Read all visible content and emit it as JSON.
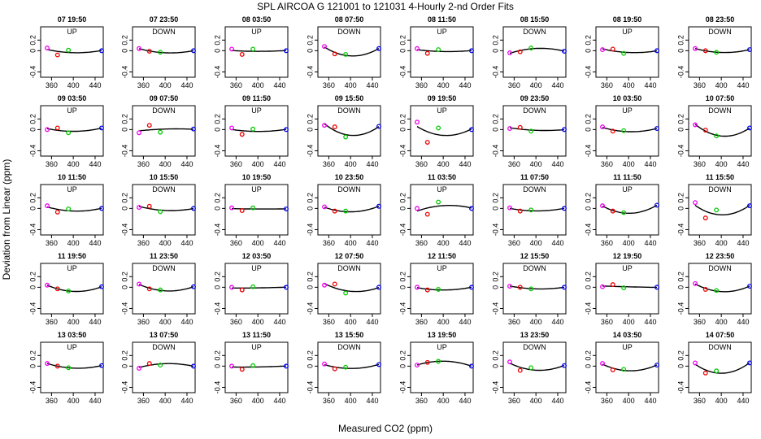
{
  "figure": {
    "title": "SPL   AIRCOA G   121001 to 121031   4-Hourly 2-nd Order Fits",
    "xlabel": "Measured CO2 (ppm)",
    "ylabel": "Deviation from Linear (ppm)"
  },
  "chart_data": {
    "type": "scatter",
    "layout": "5 rows x 8 columns small multiples",
    "xlim": [
      340,
      455
    ],
    "ylim": [
      -0.5,
      0.45
    ],
    "x_ticks": [
      360,
      400,
      440
    ],
    "y_ticks": [
      -0.4,
      0,
      0.2
    ],
    "y_tick_labels": [
      "-0.4",
      "0",
      "0.2"
    ],
    "standards_x": [
      352,
      371,
      391,
      452
    ],
    "point_colors": [
      "#ee00ee",
      "#ee0000",
      "#00cc00",
      "#0000ee"
    ],
    "curve_color": "#000000",
    "panels": [
      {
        "title": "07 19:50",
        "dir": "UP",
        "pts": [
          0.05,
          -0.08,
          0.01,
          0.0
        ]
      },
      {
        "title": "07 23:50",
        "dir": "DOWN",
        "pts": [
          0.04,
          -0.01,
          -0.03,
          0.0
        ]
      },
      {
        "title": "08 03:50",
        "dir": "UP",
        "pts": [
          0.03,
          -0.07,
          0.03,
          0.0
        ]
      },
      {
        "title": "08 07:50",
        "dir": "DOWN",
        "pts": [
          0.08,
          -0.06,
          -0.07,
          0.04
        ]
      },
      {
        "title": "08 11:50",
        "dir": "UP",
        "pts": [
          0.04,
          -0.05,
          0.02,
          0.0
        ]
      },
      {
        "title": "08 15:50",
        "dir": "DOWN",
        "pts": [
          -0.04,
          -0.02,
          0.05,
          -0.01
        ]
      },
      {
        "title": "08 19:50",
        "dir": "UP",
        "pts": [
          0.02,
          0.03,
          -0.05,
          0.0
        ]
      },
      {
        "title": "08 23:50",
        "dir": "DOWN",
        "pts": [
          0.04,
          0.0,
          -0.03,
          0.02
        ]
      },
      {
        "title": "09 03:50",
        "dir": "UP",
        "pts": [
          0.0,
          0.03,
          -0.06,
          0.03
        ]
      },
      {
        "title": "09 07:50",
        "dir": "DOWN",
        "pts": [
          -0.06,
          0.08,
          -0.05,
          0.01
        ]
      },
      {
        "title": "09 11:50",
        "dir": "UP",
        "pts": [
          0.03,
          -0.09,
          0.01,
          0.0
        ]
      },
      {
        "title": "09 15:50",
        "dir": "DOWN",
        "pts": [
          0.08,
          0.05,
          -0.14,
          0.06
        ]
      },
      {
        "title": "09 19:50",
        "dir": "UP",
        "pts": [
          0.14,
          -0.24,
          0.03,
          0.0
        ]
      },
      {
        "title": "09 23:50",
        "dir": "DOWN",
        "pts": [
          0.02,
          0.04,
          -0.03,
          0.0
        ]
      },
      {
        "title": "10 03:50",
        "dir": "UP",
        "pts": [
          0.05,
          -0.03,
          -0.02,
          0.02
        ]
      },
      {
        "title": "10 07:50",
        "dir": "DOWN",
        "pts": [
          0.09,
          -0.01,
          -0.12,
          0.03
        ]
      },
      {
        "title": "10 11:50",
        "dir": "UP",
        "pts": [
          0.05,
          -0.07,
          -0.01,
          0.0
        ]
      },
      {
        "title": "10 15:50",
        "dir": "DOWN",
        "pts": [
          0.02,
          0.04,
          -0.06,
          0.0
        ]
      },
      {
        "title": "10 19:50",
        "dir": "UP",
        "pts": [
          0.01,
          -0.04,
          0.01,
          -0.01
        ]
      },
      {
        "title": "10 23:50",
        "dir": "DOWN",
        "pts": [
          0.03,
          -0.05,
          -0.05,
          0.04
        ]
      },
      {
        "title": "11 03:50",
        "dir": "UP",
        "pts": [
          0.0,
          -0.11,
          0.12,
          0.0
        ]
      },
      {
        "title": "11 07:50",
        "dir": "DOWN",
        "pts": [
          0.01,
          -0.05,
          -0.03,
          0.0
        ]
      },
      {
        "title": "11 11:50",
        "dir": "UP",
        "pts": [
          0.05,
          -0.05,
          -0.08,
          0.06
        ]
      },
      {
        "title": "11 15:50",
        "dir": "DOWN",
        "pts": [
          0.11,
          -0.18,
          -0.03,
          0.05
        ]
      },
      {
        "title": "11 19:50",
        "dir": "UP",
        "pts": [
          0.04,
          -0.03,
          -0.07,
          0.01
        ]
      },
      {
        "title": "11 23:50",
        "dir": "DOWN",
        "pts": [
          0.06,
          -0.03,
          -0.05,
          0.01
        ]
      },
      {
        "title": "12 03:50",
        "dir": "UP",
        "pts": [
          0.0,
          -0.05,
          0.01,
          0.0
        ]
      },
      {
        "title": "12 07:50",
        "dir": "DOWN",
        "pts": [
          0.04,
          0.06,
          -0.11,
          0.0
        ]
      },
      {
        "title": "12 11:50",
        "dir": "UP",
        "pts": [
          0.0,
          -0.05,
          -0.04,
          0.0
        ]
      },
      {
        "title": "12 15:50",
        "dir": "DOWN",
        "pts": [
          0.02,
          0.0,
          -0.03,
          0.0
        ]
      },
      {
        "title": "12 19:50",
        "dir": "UP",
        "pts": [
          0.01,
          0.05,
          -0.01,
          0.0
        ]
      },
      {
        "title": "12 23:50",
        "dir": "DOWN",
        "pts": [
          0.07,
          -0.04,
          -0.06,
          0.02
        ]
      },
      {
        "title": "13 03:50",
        "dir": "UP",
        "pts": [
          0.05,
          0.0,
          -0.03,
          0.01
        ]
      },
      {
        "title": "13 07:50",
        "dir": "DOWN",
        "pts": [
          -0.04,
          0.05,
          0.02,
          0.0
        ]
      },
      {
        "title": "13 11:50",
        "dir": "UP",
        "pts": [
          0.0,
          -0.06,
          0.01,
          0.0
        ]
      },
      {
        "title": "13 15:50",
        "dir": "DOWN",
        "pts": [
          0.04,
          -0.05,
          -0.02,
          0.03
        ]
      },
      {
        "title": "13 19:50",
        "dir": "UP",
        "pts": [
          0.02,
          0.07,
          0.09,
          0.0
        ]
      },
      {
        "title": "13 23:50",
        "dir": "DOWN",
        "pts": [
          0.08,
          -0.08,
          -0.03,
          0.01
        ]
      },
      {
        "title": "14 03:50",
        "dir": "UP",
        "pts": [
          0.05,
          -0.07,
          -0.06,
          0.02
        ]
      },
      {
        "title": "14 07:50",
        "dir": "DOWN",
        "pts": [
          0.06,
          -0.13,
          -0.09,
          0.06
        ]
      }
    ]
  }
}
